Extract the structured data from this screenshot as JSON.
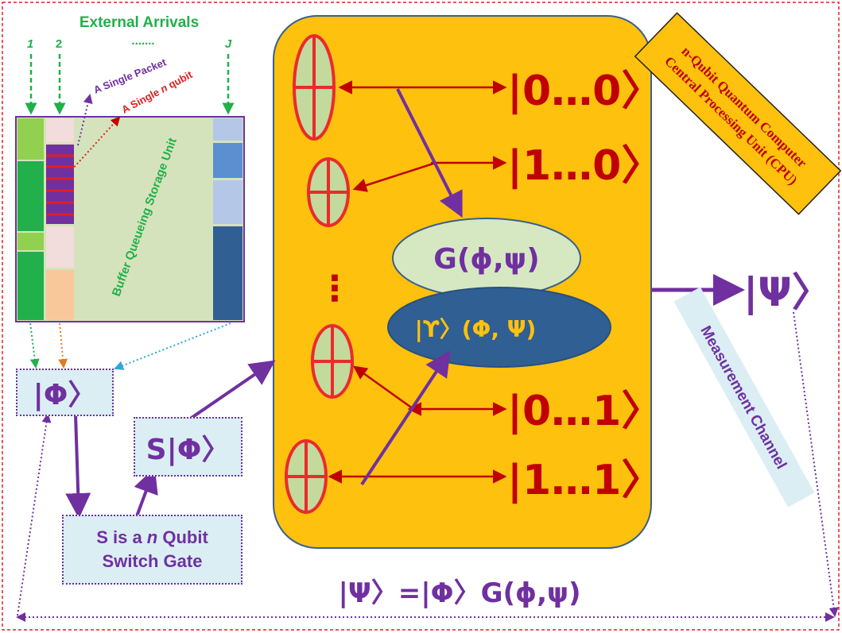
{
  "external_arrivals": {
    "title": "External Arrivals",
    "channel_labels": [
      "1",
      "2",
      ".......",
      "J"
    ]
  },
  "buffer": {
    "label": "Buffer Queueing Storage Unit",
    "packet_label": "A Single Packet",
    "qubit_label_prefix": "A Single ",
    "qubit_label_italic": "n",
    "qubit_label_suffix": " qubit"
  },
  "cpu": {
    "title_line1": "n-Qubit Quantum Computer",
    "title_line2": "Central Processing Unit (CPU)",
    "states": [
      "|0…0〉",
      "|1…0〉",
      "|0…1〉",
      "|1…1〉"
    ],
    "dots": "⋮",
    "gate": "G(ϕ,ψ)",
    "upsilon": "|ϒ〉(Φ, Ψ)"
  },
  "input_state": "|Φ〉",
  "switched_state": "S|Φ〉",
  "switch_gate": {
    "line1_prefix": "S is a ",
    "line1_italic": "n",
    "line1_suffix": " Qubit",
    "line2": "Switch Gate"
  },
  "output_state": "|Ψ〉",
  "measurement_channel": "Measurement Channel",
  "equation": "|Ψ〉=|Φ〉G(ϕ,ψ)",
  "colors": {
    "cpu_fill": "#fdc10e",
    "purple": "#7030a0",
    "dark_red": "#c00000",
    "green": "#21b04b",
    "light_blue": "#dbeef4",
    "navy": "#305f94"
  }
}
